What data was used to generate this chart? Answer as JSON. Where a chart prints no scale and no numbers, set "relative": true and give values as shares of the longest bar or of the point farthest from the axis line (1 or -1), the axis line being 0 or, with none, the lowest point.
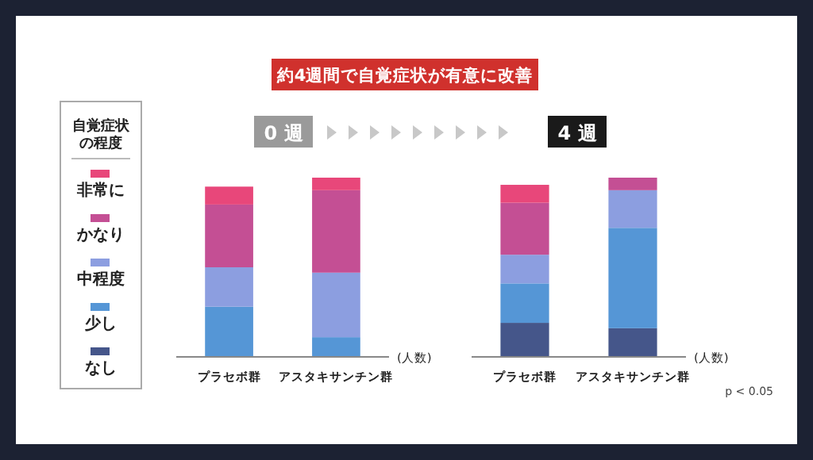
{
  "chart_data": [
    {
      "type": "bar",
      "title": "約4週間で自覚症状が有意に改善",
      "subtitle": "0 週",
      "ylabel": "(人数)",
      "relative": true,
      "stacked": true,
      "legend": "left",
      "legend_title": "自覚症状の程度",
      "categories": [
        "プラセボ群",
        "アスタキサンチン群"
      ],
      "series": [
        {
          "name": "なし",
          "color": "#45568a",
          "values": [
            0,
            0
          ]
        },
        {
          "name": "少し",
          "color": "#5596d6",
          "values": [
            0.28,
            0.11
          ]
        },
        {
          "name": "中程度",
          "color": "#8c9ee0",
          "values": [
            0.22,
            0.36
          ]
        },
        {
          "name": "かなり",
          "color": "#c44f94",
          "values": [
            0.35,
            0.46
          ]
        },
        {
          "name": "非常に",
          "color": "#e8477a",
          "values": [
            0.1,
            0.07
          ]
        }
      ]
    },
    {
      "type": "bar",
      "subtitle": "4 週",
      "ylabel": "(人数)",
      "relative": true,
      "stacked": true,
      "annotations": [
        "p < 0.05"
      ],
      "categories": [
        "プラセボ群",
        "アスタキサンチン群"
      ],
      "series": [
        {
          "color": "#45568a",
          "values": [
            0.19,
            0.16
          ]
        },
        {
          "color": "#5596d6",
          "values": [
            0.22,
            0.56
          ]
        },
        {
          "color": "#8c9ee0",
          "values": [
            0.16,
            0.21
          ]
        },
        {
          "color": "#c44f94",
          "values": [
            0.29,
            0.07
          ]
        },
        {
          "color": "#e8477a",
          "values": [
            0.1,
            0
          ]
        }
      ]
    }
  ]
}
